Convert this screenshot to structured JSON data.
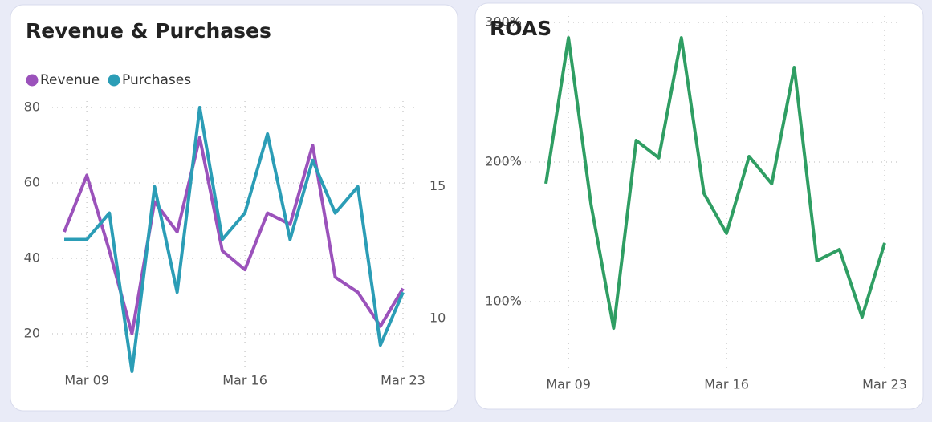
{
  "chart_data": [
    {
      "type": "line",
      "title": "Revenue & Purchases",
      "categories": [
        null,
        "Mar 09",
        null,
        null,
        null,
        null,
        null,
        null,
        "Mar 16",
        null,
        null,
        null,
        null,
        null,
        null,
        "Mar 23"
      ],
      "series": [
        {
          "name": "Revenue",
          "color": "#9b52bb",
          "values": [
            47,
            62,
            42,
            20,
            55,
            47,
            72,
            42,
            37,
            52,
            49,
            70,
            35,
            31,
            22,
            32
          ]
        },
        {
          "name": "Purchases",
          "color": "#2b9db6",
          "axis": "y2",
          "values": [
            13,
            13,
            14,
            8,
            15,
            11,
            18,
            13,
            14,
            17,
            13,
            16,
            14,
            15,
            9,
            11
          ]
        }
      ],
      "ylim": [
        10,
        80
      ],
      "yticks": [
        20,
        40,
        60,
        80
      ],
      "y2lim": [
        8,
        18
      ],
      "y2ticks": [
        10,
        15
      ],
      "grid": true,
      "legend": "top-left"
    },
    {
      "type": "line",
      "title": "ROAS",
      "categories": [
        null,
        "Mar 09",
        null,
        null,
        null,
        null,
        null,
        null,
        "Mar 16",
        null,
        null,
        null,
        null,
        null,
        null,
        "Mar 23"
      ],
      "series": [
        {
          "name": "ROAS",
          "color": "#2f9e63",
          "values": [
            184.5,
            289,
            169.5,
            81,
            215.5,
            203,
            289,
            177.6,
            148.9,
            204,
            184.5,
            267.8,
            129.3,
            137.4,
            89,
            142
          ]
        }
      ],
      "ylim": [
        50,
        300
      ],
      "yticks": [
        {
          "value": 100,
          "label": "100%"
        },
        {
          "value": 200,
          "label": "200%"
        },
        {
          "value": 300,
          "label": "300%"
        }
      ],
      "grid": true
    }
  ]
}
